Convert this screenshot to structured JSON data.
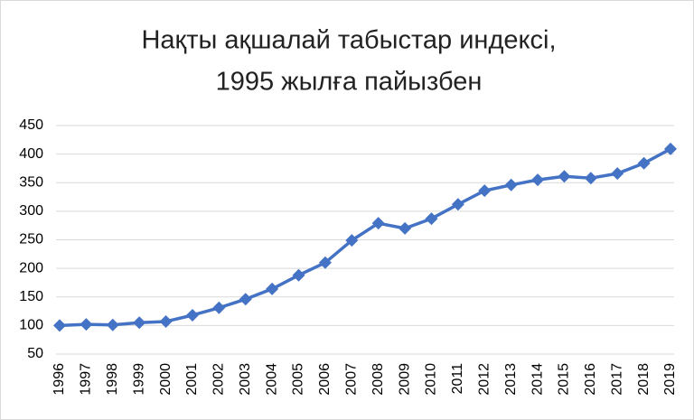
{
  "chart_data": {
    "type": "line",
    "title": [
      "Нақты ақшалай табыстар индексі,",
      "1995 жылға пайызбен"
    ],
    "categories": [
      "1996",
      "1997",
      "1998",
      "1999",
      "2000",
      "2001",
      "2002",
      "2003",
      "2004",
      "2005",
      "2006",
      "2007",
      "2008",
      "2009",
      "2010",
      "2011",
      "2012",
      "2013",
      "2014",
      "2015",
      "2016",
      "2017",
      "2018",
      "2019"
    ],
    "series": [
      {
        "color": "#4472c4",
        "values": [
          100,
          102,
          101,
          105,
          107,
          118,
          131,
          146,
          164,
          188,
          210,
          249,
          279,
          270,
          287,
          312,
          336,
          346,
          355,
          361,
          358,
          366,
          384,
          409
        ]
      }
    ],
    "ylim": [
      50,
      450
    ],
    "yticks": [
      50,
      100,
      150,
      200,
      250,
      300,
      350,
      400,
      450
    ],
    "grid": true
  }
}
